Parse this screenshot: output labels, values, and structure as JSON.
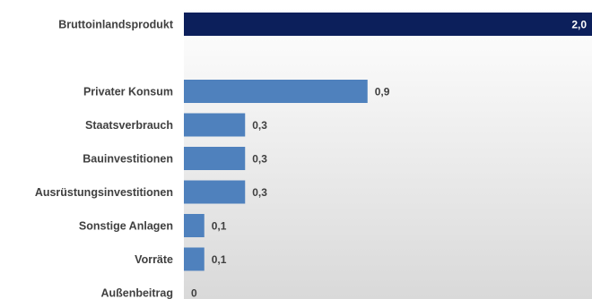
{
  "chart_data": {
    "type": "bar",
    "orientation": "horizontal",
    "categories": [
      "Bruttoinlandsprodukt",
      "",
      "Privater Konsum",
      "Staatsverbrauch",
      "Bauinvestitionen",
      "Ausrüstungsinvestitionen",
      "Sonstige Anlagen",
      "Vorräte",
      "Außenbeitrag"
    ],
    "values": [
      2.0,
      null,
      0.9,
      0.3,
      0.3,
      0.3,
      0.1,
      0.1,
      0
    ],
    "value_labels": [
      "2,0",
      "",
      "0,9",
      "0,3",
      "0,3",
      "0,3",
      "0,1",
      "0,1",
      "0"
    ],
    "xlim": [
      0,
      2.0
    ],
    "grid": false,
    "title": "",
    "xlabel": "",
    "ylabel": "",
    "colors": {
      "highlight": "#0c1f5b",
      "bar": "#4f81bd"
    }
  }
}
